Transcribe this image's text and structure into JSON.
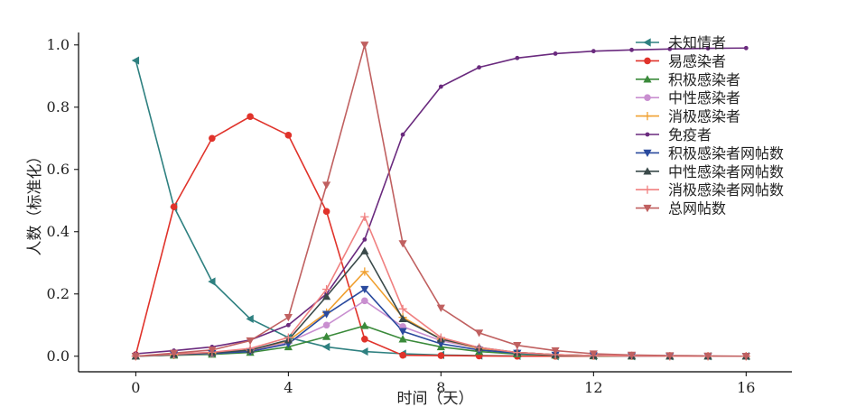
{
  "chart_data": {
    "type": "line",
    "xlabel": "时间（天）",
    "ylabel": "人数（标准化）",
    "xlim": [
      -1.5,
      17.2
    ],
    "ylim": [
      -0.05,
      1.04
    ],
    "xticks": [
      0,
      4,
      8,
      12,
      16
    ],
    "yticks": [
      0.0,
      0.2,
      0.4,
      0.6,
      0.8,
      1.0
    ],
    "legend_position": "top-right",
    "grid": false,
    "x": [
      0,
      1,
      2,
      3,
      4,
      5,
      6,
      7,
      8,
      9,
      10,
      11,
      12,
      13,
      14,
      15,
      16
    ],
    "series": [
      {
        "name": "未知情者",
        "color": "#2e8080",
        "marker": "tri-left",
        "values": [
          0.95,
          0.48,
          0.24,
          0.12,
          0.06,
          0.03,
          0.015,
          0.008,
          0.004,
          0.002,
          0.001,
          0.0,
          0.0,
          0.0,
          0.0,
          0.0,
          0.0
        ]
      },
      {
        "name": "易感染者",
        "color": "#e0332b",
        "marker": "circle",
        "values": [
          0.005,
          0.48,
          0.7,
          0.77,
          0.71,
          0.465,
          0.055,
          0.003,
          0.002,
          0.001,
          0.0,
          0.0,
          0.0,
          0.0,
          0.0,
          0.0,
          0.0
        ]
      },
      {
        "name": "积极感染者",
        "color": "#3a8a3a",
        "marker": "tri-up",
        "values": [
          0.0,
          0.003,
          0.006,
          0.012,
          0.03,
          0.063,
          0.098,
          0.055,
          0.03,
          0.015,
          0.007,
          0.003,
          0.001,
          0.0,
          0.0,
          0.0,
          0.0
        ]
      },
      {
        "name": "中性感染者",
        "color": "#c98fd0",
        "marker": "circle",
        "values": [
          0.0,
          0.004,
          0.008,
          0.018,
          0.045,
          0.1,
          0.178,
          0.095,
          0.05,
          0.025,
          0.012,
          0.005,
          0.002,
          0.001,
          0.0,
          0.0,
          0.0
        ]
      },
      {
        "name": "消极感染者",
        "color": "#f0a030",
        "marker": "plus",
        "values": [
          0.0,
          0.004,
          0.009,
          0.02,
          0.05,
          0.14,
          0.272,
          0.125,
          0.055,
          0.025,
          0.012,
          0.005,
          0.002,
          0.001,
          0.0,
          0.0,
          0.0
        ]
      },
      {
        "name": "免疫者",
        "color": "#6a2a7e",
        "marker": "dot",
        "values": [
          0.008,
          0.018,
          0.03,
          0.052,
          0.1,
          0.2,
          0.375,
          0.712,
          0.866,
          0.928,
          0.958,
          0.972,
          0.98,
          0.984,
          0.987,
          0.989,
          0.99
        ]
      },
      {
        "name": "积极感染者网帖数",
        "color": "#2a4a9e",
        "marker": "tri-down",
        "values": [
          0.0,
          0.005,
          0.009,
          0.015,
          0.04,
          0.135,
          0.215,
          0.08,
          0.04,
          0.02,
          0.01,
          0.004,
          0.002,
          0.001,
          0.0,
          0.0,
          0.0
        ]
      },
      {
        "name": "中性感染者网帖数",
        "color": "#3a4a4a",
        "marker": "tri-up",
        "values": [
          0.0,
          0.006,
          0.011,
          0.02,
          0.052,
          0.192,
          0.338,
          0.12,
          0.055,
          0.028,
          0.012,
          0.005,
          0.002,
          0.001,
          0.0,
          0.0,
          0.0
        ]
      },
      {
        "name": "消极感染者网帖数",
        "color": "#f08080",
        "marker": "plus",
        "values": [
          0.0,
          0.007,
          0.013,
          0.025,
          0.06,
          0.215,
          0.448,
          0.152,
          0.06,
          0.028,
          0.012,
          0.005,
          0.002,
          0.001,
          0.0,
          0.0,
          0.0
        ]
      },
      {
        "name": "总网帖数",
        "color": "#c06060",
        "marker": "tri-down",
        "values": [
          0.0,
          0.01,
          0.02,
          0.05,
          0.125,
          0.55,
          1.0,
          0.362,
          0.155,
          0.075,
          0.035,
          0.018,
          0.008,
          0.004,
          0.002,
          0.001,
          0.0
        ]
      }
    ]
  }
}
